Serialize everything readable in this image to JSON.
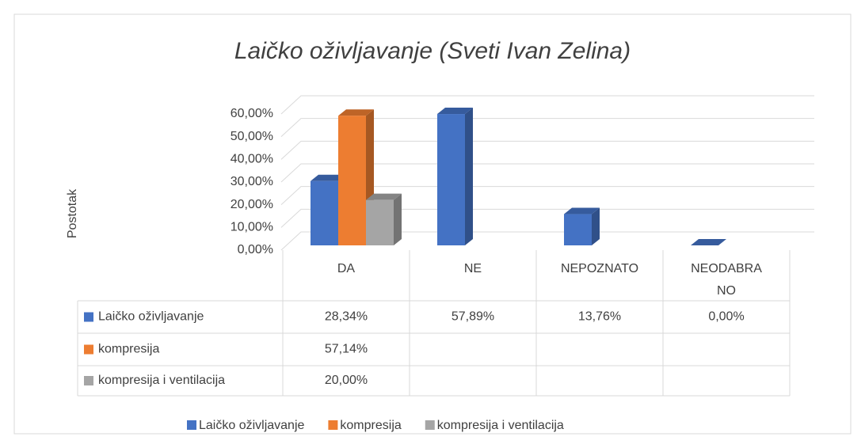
{
  "chart_data": {
    "type": "bar3d",
    "title": "Laičko oživljavanje (Sveti Ivan Zelina)",
    "y_label": "Postotak",
    "categories": [
      "DA",
      "NE",
      "NEPOZNATO",
      "NEODABRANO"
    ],
    "series": [
      {
        "name": "Laičko oživljavanje",
        "color": "#4472c4",
        "values": [
          28.34,
          57.89,
          13.76,
          0.0
        ],
        "value_labels": [
          "28,34%",
          "57,89%",
          "13,76%",
          "0,00%"
        ]
      },
      {
        "name": "kompresija",
        "color": "#ed7d31",
        "values": [
          57.14,
          null,
          null,
          null
        ],
        "value_labels": [
          "57,14%",
          null,
          null,
          null
        ]
      },
      {
        "name": "kompresija i ventilacija",
        "color": "#a5a5a5",
        "values": [
          20.0,
          null,
          null,
          null
        ],
        "value_labels": [
          "20,00%",
          null,
          null,
          null
        ]
      }
    ],
    "ylim": [
      0,
      60
    ],
    "yticks": [
      {
        "value": 0,
        "label": "0,00%"
      },
      {
        "value": 10,
        "label": "10,00%"
      },
      {
        "value": 20,
        "label": "20,00%"
      },
      {
        "value": 30,
        "label": "30,00%"
      },
      {
        "value": 40,
        "label": "40,00%"
      },
      {
        "value": 50,
        "label": "50,00%"
      },
      {
        "value": 60,
        "label": "60,00%"
      }
    ],
    "grid": true,
    "legend": "bottom",
    "data_table": true
  }
}
